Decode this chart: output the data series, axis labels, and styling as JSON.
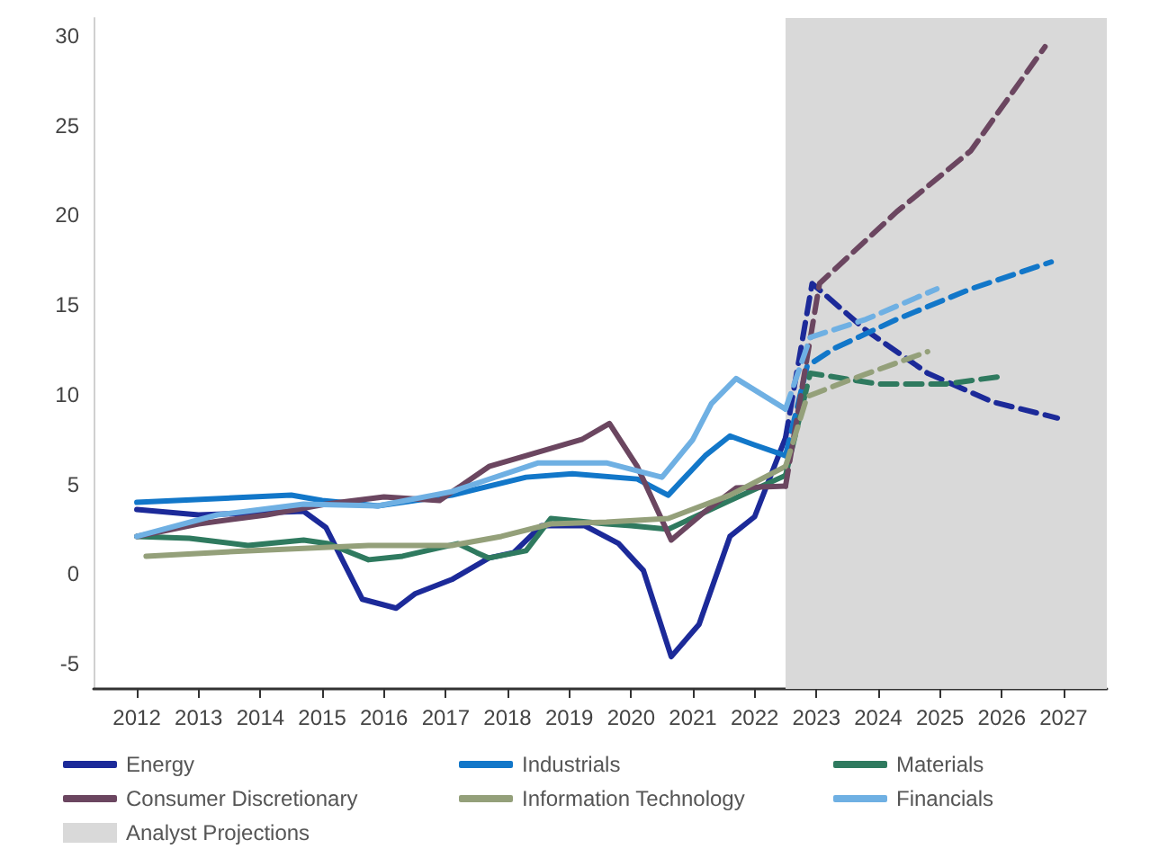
{
  "chart_data": {
    "type": "line",
    "xlim": [
      2011.3,
      2027.7
    ],
    "xticks": [
      2012,
      2013,
      2014,
      2015,
      2016,
      2017,
      2018,
      2019,
      2020,
      2021,
      2022,
      2023,
      2024,
      2025,
      2026,
      2027
    ],
    "ylim": [
      -6.4,
      31
    ],
    "yticks": [
      -5,
      0,
      5,
      10,
      15,
      20,
      25,
      30
    ],
    "grid": false,
    "legend": "bottom",
    "bands": [
      {
        "axis": "x",
        "from": 2022.5,
        "to": 2027.7,
        "label": "Analyst Projections",
        "color": "#d9d9d9"
      }
    ],
    "series": [
      {
        "name": "Energy",
        "color": "#1c2a99",
        "line_style": "solid",
        "x": [
          2012,
          2013,
          2014.7,
          2015.06,
          2015.65,
          2016.2,
          2016.5,
          2017.1,
          2017.7,
          2018.1,
          2018.55,
          2019.25,
          2019.8,
          2020.2,
          2020.65,
          2021.1,
          2021.6,
          2022,
          2022.5
        ],
        "values": [
          3.6,
          3.3,
          3.5,
          2.6,
          -1.4,
          -1.9,
          -1.1,
          -0.3,
          0.9,
          1.2,
          2.7,
          2.7,
          1.7,
          0.2,
          -4.6,
          -2.8,
          2.1,
          3.2,
          7.6
        ]
      },
      {
        "name": "Industrials",
        "color": "#1277c9",
        "line_style": "solid",
        "x": [
          2012,
          2014.5,
          2015,
          2015.9,
          2017.1,
          2018.3,
          2019.05,
          2020.1,
          2020.6,
          2021.2,
          2021.6,
          2022,
          2022.5
        ],
        "values": [
          4.0,
          4.4,
          4.1,
          3.8,
          4.4,
          5.4,
          5.6,
          5.3,
          4.4,
          6.6,
          7.7,
          7.2,
          6.6
        ]
      },
      {
        "name": "Materials",
        "color": "#2f7a5f",
        "line_style": "solid",
        "x": [
          2012,
          2012.85,
          2013.8,
          2014.7,
          2015.1,
          2015.75,
          2016.3,
          2017.2,
          2017.5,
          2017.7,
          2018.3,
          2018.7,
          2019.6,
          2020,
          2020.6,
          2021.6,
          2022.5
        ],
        "values": [
          2.1,
          2.0,
          1.6,
          1.9,
          1.7,
          0.8,
          1.0,
          1.7,
          1.2,
          0.9,
          1.3,
          3.1,
          2.8,
          2.7,
          2.5,
          4.1,
          5.5
        ]
      },
      {
        "name": "Consumer Discretionary",
        "color": "#6b4660",
        "line_style": "solid",
        "x": [
          2012,
          2013,
          2014.1,
          2015.06,
          2016,
          2016.9,
          2017.7,
          2018.5,
          2019.2,
          2019.65,
          2020.1,
          2020.65,
          2021.2,
          2021.7,
          2022.5
        ],
        "values": [
          2.1,
          2.8,
          3.3,
          3.9,
          4.3,
          4.1,
          6.0,
          6.8,
          7.5,
          8.4,
          6.0,
          1.9,
          3.5,
          4.8,
          4.9
        ]
      },
      {
        "name": "Information Technology",
        "color": "#94a07a",
        "line_style": "solid",
        "x": [
          2012.15,
          2013.8,
          2015.75,
          2017.1,
          2017.9,
          2018.7,
          2019.6,
          2020.6,
          2021.6,
          2022.5
        ],
        "values": [
          1.0,
          1.3,
          1.6,
          1.6,
          2.1,
          2.8,
          2.9,
          3.1,
          4.4,
          6.0
        ]
      },
      {
        "name": "Financials",
        "color": "#6fb0e3",
        "line_style": "solid",
        "x": [
          2012,
          2013.3,
          2014.7,
          2015.9,
          2017.1,
          2018.5,
          2019.6,
          2020.5,
          2021,
          2021.3,
          2021.7,
          2022.5
        ],
        "values": [
          2.1,
          3.3,
          3.9,
          3.8,
          4.6,
          6.2,
          6.2,
          5.4,
          7.5,
          9.5,
          10.9,
          9.2
        ]
      },
      {
        "color": "#1c2a99",
        "line_style": "dashed",
        "x": [
          2022.5,
          2022.93,
          2023.8,
          2024.8,
          2025.85,
          2026.9
        ],
        "values": [
          7.6,
          16.2,
          13.6,
          11.2,
          9.6,
          8.7
        ]
      },
      {
        "color": "#1277c9",
        "line_style": "dashed",
        "x": [
          2022.5,
          2022.85,
          2023.3,
          2024.3,
          2025.5,
          2026.8
        ],
        "values": [
          6.6,
          11.6,
          12.6,
          14.2,
          15.9,
          17.4
        ]
      },
      {
        "color": "#2f7a5f",
        "line_style": "dashed",
        "x": [
          2022.5,
          2022.9,
          2024,
          2025.1,
          2025.95
        ],
        "values": [
          5.5,
          11.2,
          10.6,
          10.6,
          11.0
        ]
      },
      {
        "color": "#6b4660",
        "line_style": "dashed",
        "x": [
          2022.5,
          2023.05,
          2024.3,
          2025.5,
          2026.7
        ],
        "values": [
          4.9,
          16.2,
          20.2,
          23.6,
          29.4
        ]
      },
      {
        "color": "#94a07a",
        "line_style": "dashed",
        "x": [
          2022.5,
          2022.85,
          2023.6,
          2024.8
        ],
        "values": [
          6.0,
          9.9,
          10.9,
          12.4
        ]
      },
      {
        "color": "#6fb0e3",
        "line_style": "dashed",
        "x": [
          2022.5,
          2022.9,
          2023.8,
          2024.95
        ],
        "values": [
          9.2,
          13.2,
          14.2,
          15.9
        ]
      }
    ]
  }
}
